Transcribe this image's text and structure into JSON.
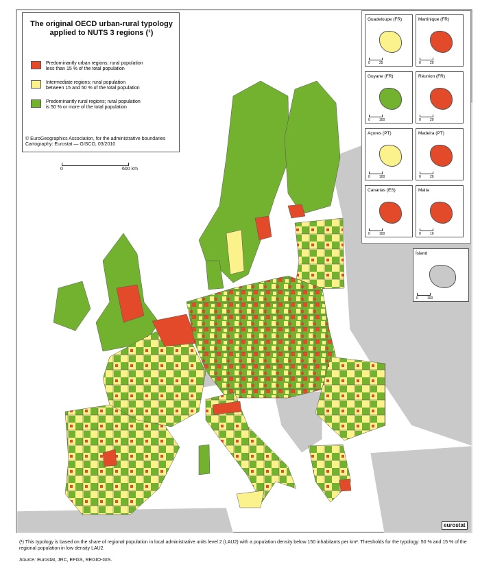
{
  "header": {
    "title_lines": [
      "The original OECD urban-rural typology",
      "applied to NUTS 3 regions (¹)"
    ]
  },
  "legend": {
    "items": [
      {
        "color": "#e34a2a",
        "label_lines": [
          "Predominantly urban regions; rural population",
          "less than 15 % of the total population"
        ]
      },
      {
        "color": "#fbf28c",
        "label_lines": [
          "Intermediate regions; rural population",
          "between 15 and 50 % of the total population"
        ]
      },
      {
        "color": "#72b22f",
        "label_lines": [
          "Predominantly rural regions; rural population",
          "is 50 % or more of the total population"
        ]
      }
    ]
  },
  "credits": [
    "© EuroGeographics Association, for the administrative boundaries",
    "Cartography: Eurostat — GISCO, 03/2010"
  ],
  "scale_bar": {
    "start": "0",
    "end": "600 km"
  },
  "insets": [
    {
      "name": "Guadeloupe (FR)",
      "scale": [
        "0",
        "25"
      ]
    },
    {
      "name": "Martinique (FR)",
      "scale": [
        "0",
        "20"
      ]
    },
    {
      "name": "Guyane (FR)",
      "scale": [
        "0",
        "100"
      ]
    },
    {
      "name": "Réunion (FR)",
      "scale": [
        "0",
        "20"
      ]
    },
    {
      "name": "Açores (PT)",
      "scale": [
        "0",
        "100"
      ]
    },
    {
      "name": "Madeira (PT)",
      "scale": [
        "0",
        "20"
      ]
    },
    {
      "name": "Canarias (ES)",
      "scale": [
        "0",
        "100"
      ]
    },
    {
      "name": "Malta",
      "scale": [
        "0",
        "10"
      ]
    },
    {
      "name": "Ísland",
      "scale": [
        "0",
        "100"
      ]
    }
  ],
  "logo": "eurostat",
  "footnote": "(¹) This typology is based on the share of regional population in local administrative units level 2 (LAU2) with a population density below 150 inhabitants per km². Thresholds for the typology: 50 % and 15 % of the regional population in low density LAU2.",
  "source": {
    "label": "Source:",
    "text": "Eurostat, JRC, EFGS, REGIO-GIS."
  }
}
